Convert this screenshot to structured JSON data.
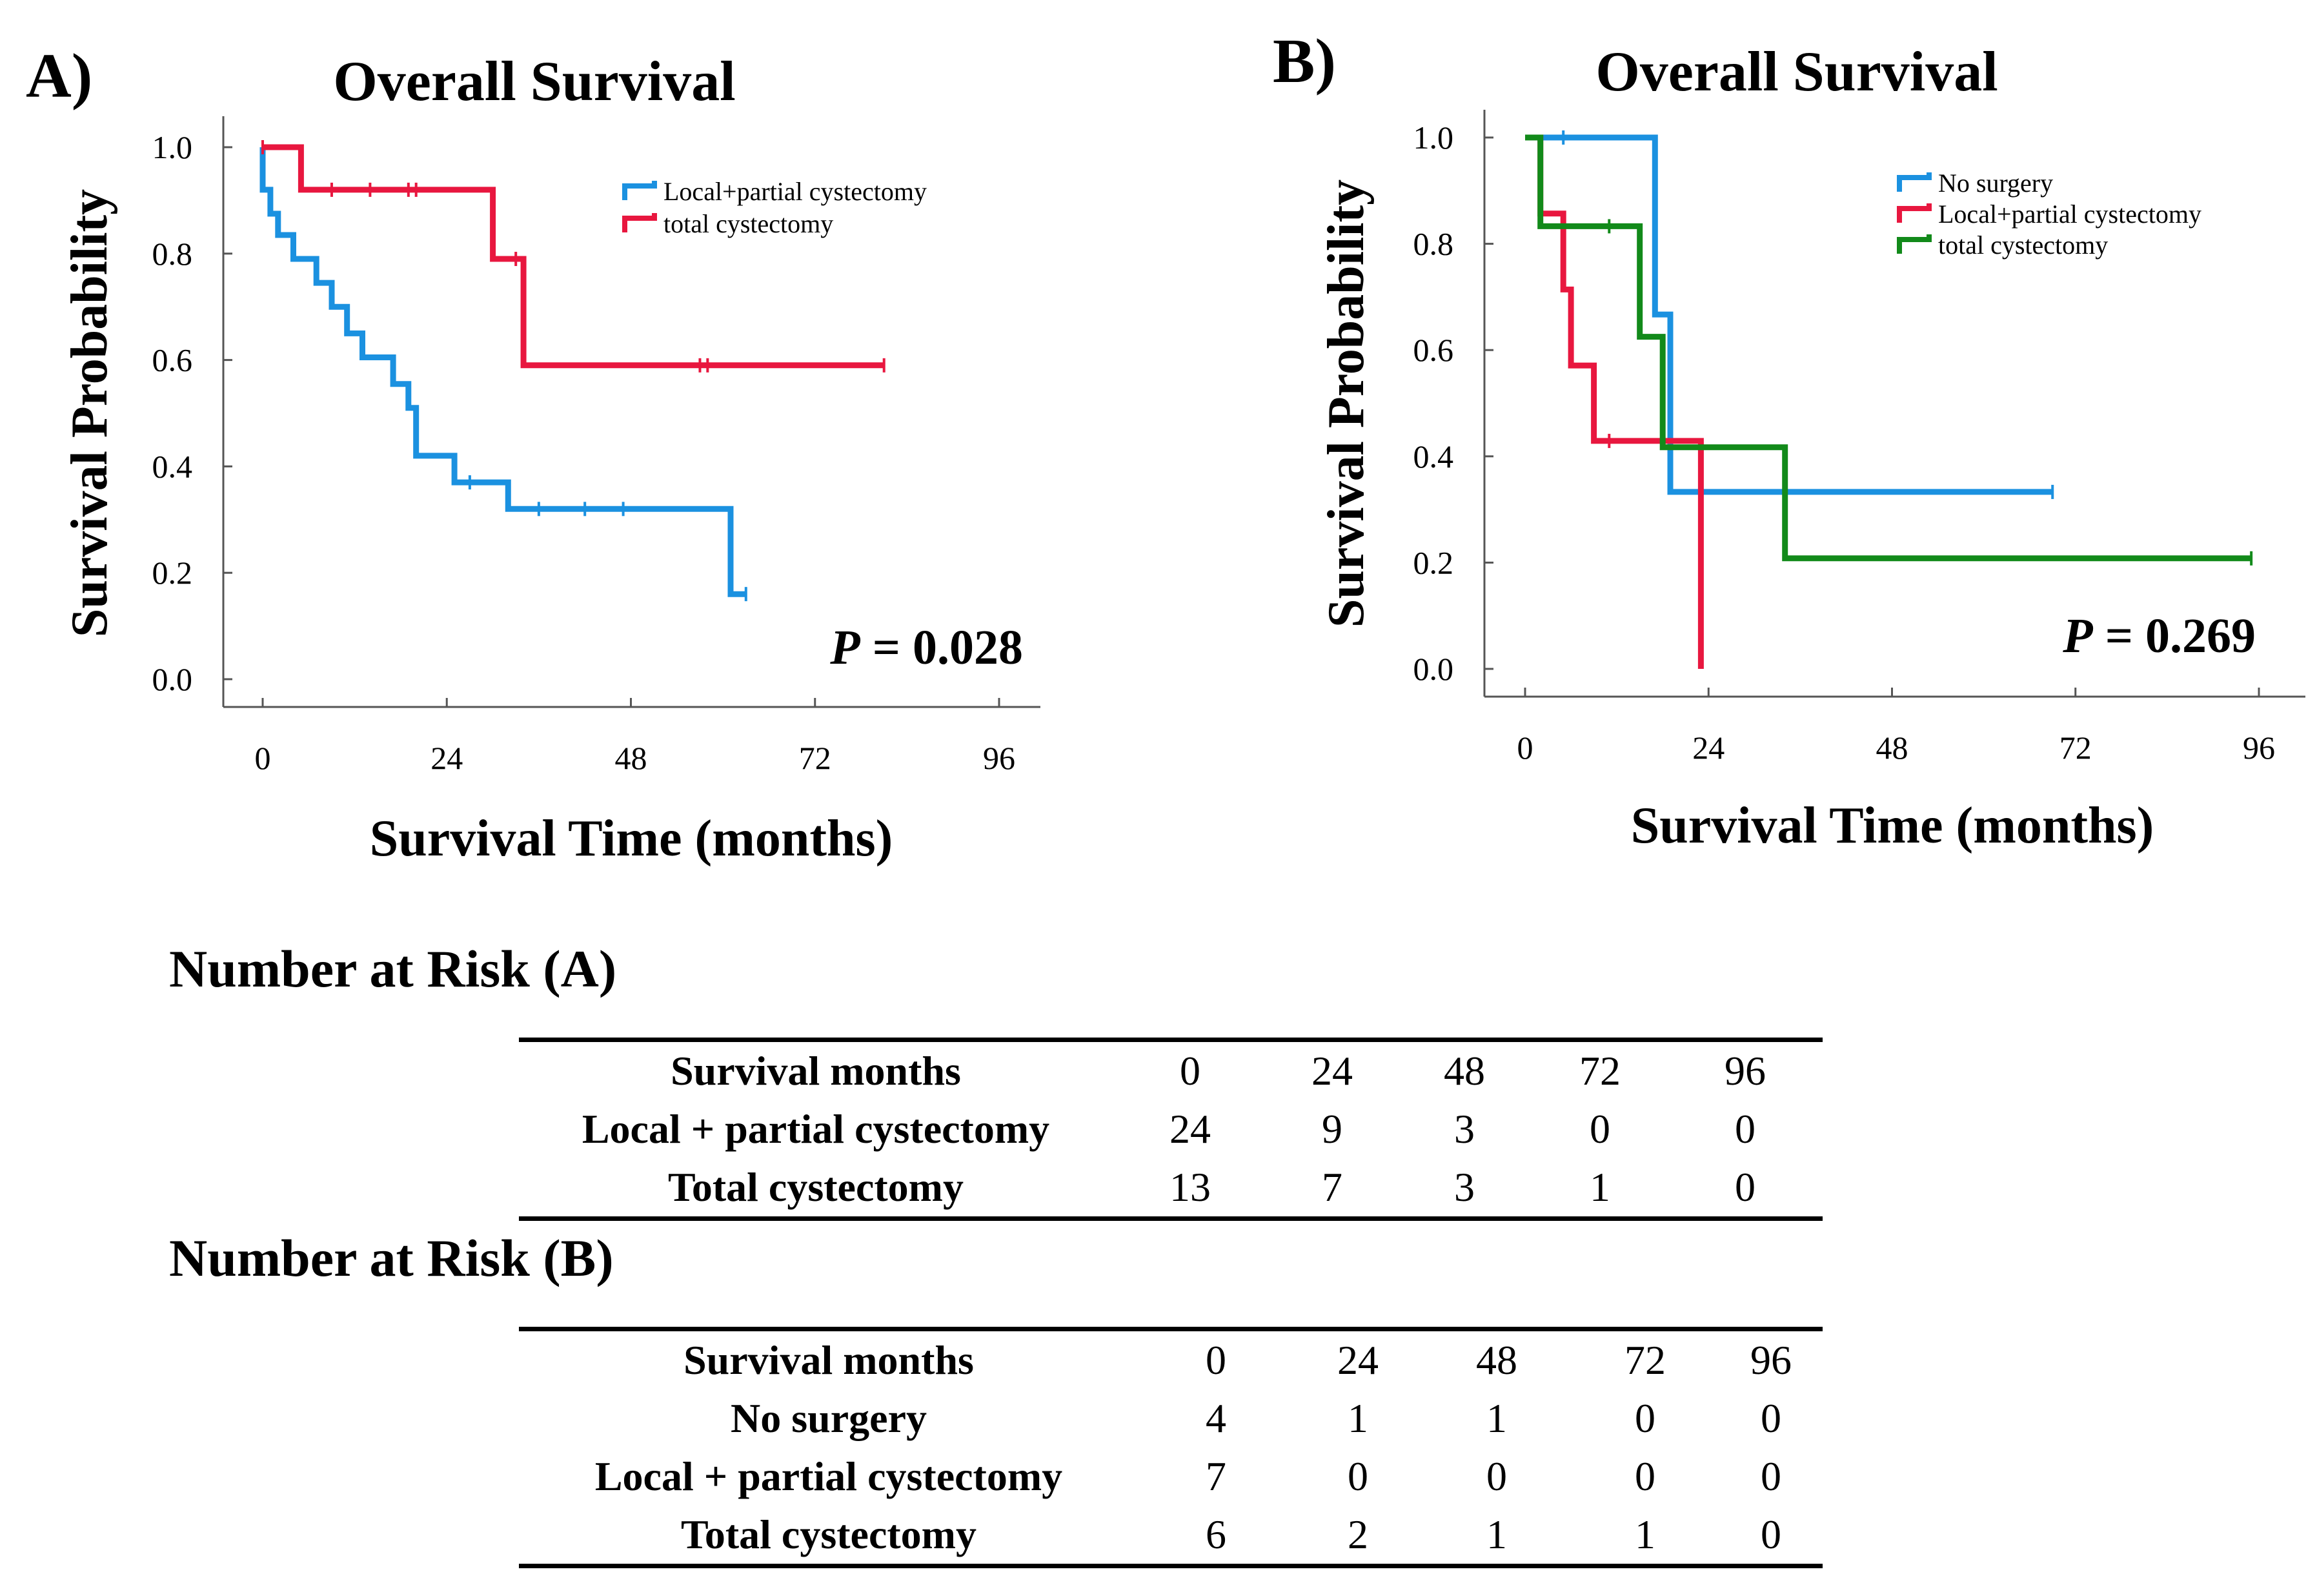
{
  "panels": [
    {
      "label": "A)",
      "title": "Overall Survival",
      "xlabel": "Survival Time (months)",
      "ylabel": "Survival Probability",
      "x_ticks": [
        "0",
        "24",
        "48",
        "72",
        "96"
      ],
      "y_ticks": [
        "0.0",
        "0.2",
        "0.4",
        "0.6",
        "0.8",
        "1.0"
      ],
      "p_prefix": "P",
      "p_rest": " = 0.028",
      "legend": [
        {
          "name": "Local+partial cystectomy",
          "color": "#1b91e0"
        },
        {
          "name": "total cystectomy",
          "color": "#e8173f"
        }
      ]
    },
    {
      "label": "B)",
      "title": "Overall Survival",
      "xlabel": "Survival Time (months)",
      "ylabel": "Survival Probability",
      "x_ticks": [
        "0",
        "24",
        "48",
        "72",
        "96"
      ],
      "y_ticks": [
        "0.0",
        "0.2",
        "0.4",
        "0.6",
        "0.8",
        "1.0"
      ],
      "p_prefix": "P",
      "p_rest": " = 0.269",
      "legend": [
        {
          "name": "No surgery",
          "color": "#1b91e0"
        },
        {
          "name": "Local+partial cystectomy",
          "color": "#e8173f"
        },
        {
          "name": "total cystectomy",
          "color": "#128a1a"
        }
      ]
    }
  ],
  "chart_data": [
    {
      "type": "line",
      "subtype": "kaplan-meier step",
      "title": "Overall Survival",
      "xlabel": "Survival Time (months)",
      "ylabel": "Survival Probability",
      "xlim": [
        0,
        96
      ],
      "ylim": [
        0,
        1
      ],
      "annotation": "P = 0.028",
      "series": [
        {
          "name": "Local+partial cystectomy",
          "color": "#1b91e0",
          "steps": [
            [
              0,
              1.0
            ],
            [
              0,
              0.92
            ],
            [
              1,
              0.92
            ],
            [
              1,
              0.875
            ],
            [
              2,
              0.875
            ],
            [
              2,
              0.835
            ],
            [
              4,
              0.835
            ],
            [
              4,
              0.79
            ],
            [
              7,
              0.79
            ],
            [
              7,
              0.745
            ],
            [
              9,
              0.745
            ],
            [
              9,
              0.7
            ],
            [
              11,
              0.7
            ],
            [
              11,
              0.65
            ],
            [
              13,
              0.65
            ],
            [
              13,
              0.605
            ],
            [
              17,
              0.605
            ],
            [
              17,
              0.555
            ],
            [
              19,
              0.555
            ],
            [
              19,
              0.51
            ],
            [
              20,
              0.51
            ],
            [
              20,
              0.42
            ],
            [
              25,
              0.42
            ],
            [
              25,
              0.37
            ],
            [
              32,
              0.37
            ],
            [
              32,
              0.32
            ],
            [
              61,
              0.32
            ],
            [
              61,
              0.16
            ],
            [
              63,
              0.16
            ]
          ],
          "censored": [
            [
              27,
              0.37
            ],
            [
              36,
              0.32
            ],
            [
              42,
              0.32
            ],
            [
              47,
              0.32
            ],
            [
              63,
              0.16
            ]
          ]
        },
        {
          "name": "total cystectomy",
          "color": "#e8173f",
          "steps": [
            [
              0,
              1.0
            ],
            [
              5,
              1.0
            ],
            [
              5,
              0.92
            ],
            [
              30,
              0.92
            ],
            [
              30,
              0.79
            ],
            [
              34,
              0.79
            ],
            [
              34,
              0.59
            ],
            [
              81,
              0.59
            ]
          ],
          "censored": [
            [
              0,
              1.0
            ],
            [
              9,
              0.92
            ],
            [
              14,
              0.92
            ],
            [
              19,
              0.92
            ],
            [
              20,
              0.92
            ],
            [
              33,
              0.79
            ],
            [
              57,
              0.59
            ],
            [
              58,
              0.59
            ],
            [
              81,
              0.59
            ]
          ]
        }
      ]
    },
    {
      "type": "line",
      "subtype": "kaplan-meier step",
      "title": "Overall Survival",
      "xlabel": "Survival Time (months)",
      "ylabel": "Survival Probability",
      "xlim": [
        0,
        96
      ],
      "ylim": [
        0,
        1
      ],
      "annotation": "P = 0.269",
      "series": [
        {
          "name": "No surgery",
          "color": "#1b91e0",
          "steps": [
            [
              0,
              1.0
            ],
            [
              17,
              1.0
            ],
            [
              17,
              0.667
            ],
            [
              19,
              0.667
            ],
            [
              19,
              0.333
            ],
            [
              69,
              0.333
            ]
          ],
          "censored": [
            [
              5,
              1.0
            ],
            [
              69,
              0.333
            ]
          ]
        },
        {
          "name": "Local+partial cystectomy",
          "color": "#e8173f",
          "steps": [
            [
              0,
              1.0
            ],
            [
              2,
              1.0
            ],
            [
              2,
              0.857
            ],
            [
              5,
              0.857
            ],
            [
              5,
              0.714
            ],
            [
              6,
              0.714
            ],
            [
              6,
              0.571
            ],
            [
              9,
              0.571
            ],
            [
              9,
              0.429
            ],
            [
              23,
              0.429
            ],
            [
              23,
              0.0
            ]
          ],
          "censored": [
            [
              11,
              0.429
            ]
          ]
        },
        {
          "name": "total cystectomy",
          "color": "#128a1a",
          "steps": [
            [
              0,
              1.0
            ],
            [
              2,
              1.0
            ],
            [
              2,
              0.833
            ],
            [
              15,
              0.833
            ],
            [
              15,
              0.625
            ],
            [
              18,
              0.625
            ],
            [
              18,
              0.417
            ],
            [
              34,
              0.417
            ],
            [
              34,
              0.208
            ],
            [
              95,
              0.208
            ]
          ],
          "censored": [
            [
              11,
              0.833
            ],
            [
              95,
              0.208
            ]
          ]
        }
      ]
    }
  ],
  "risk_tables": [
    {
      "title": "Number at Risk (A)",
      "header_label": "Survival months",
      "columns": [
        "0",
        "24",
        "48",
        "72",
        "96"
      ],
      "rows": [
        {
          "label": "Local + partial cystectomy",
          "values": [
            "24",
            "9",
            "3",
            "0",
            "0"
          ]
        },
        {
          "label": "Total cystectomy",
          "values": [
            "13",
            "7",
            "3",
            "1",
            "0"
          ]
        }
      ]
    },
    {
      "title": "Number at Risk (B)",
      "header_label": "Survival months",
      "columns": [
        "0",
        "24",
        "48",
        "72",
        "96"
      ],
      "rows": [
        {
          "label": "No surgery",
          "values": [
            "4",
            "1",
            "1",
            "0",
            "0"
          ]
        },
        {
          "label": "Local + partial cystectomy",
          "values": [
            "7",
            "0",
            "0",
            "0",
            "0"
          ]
        },
        {
          "label": "Total cystectomy",
          "values": [
            "6",
            "2",
            "1",
            "1",
            "0"
          ]
        }
      ]
    }
  ]
}
